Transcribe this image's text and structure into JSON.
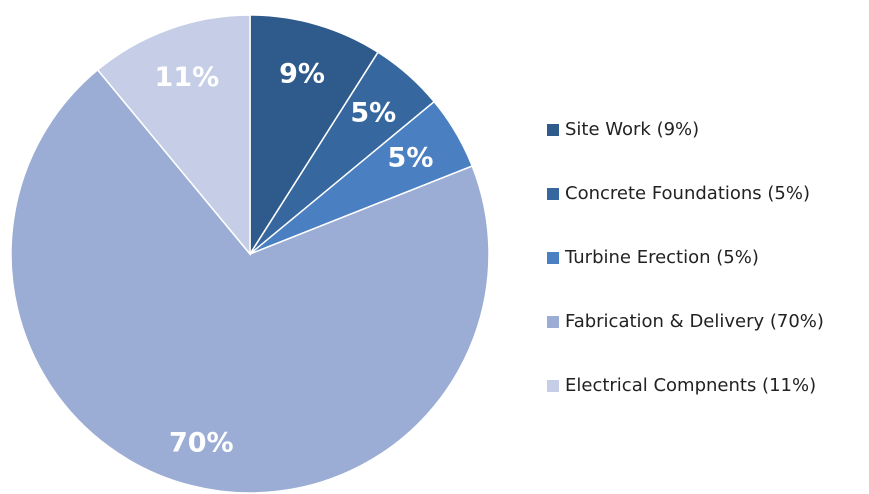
{
  "chart_data": {
    "type": "pie",
    "categories": [
      "Site Work (9%)",
      "Concrete Foundations (5%)",
      "Turbine Erection (5%)",
      "Fabrication & Delivery (70%)",
      "Electrical Compnents (11%)"
    ],
    "values": [
      9,
      5,
      5,
      70,
      11
    ],
    "value_labels": [
      "9%",
      "5%",
      "5%",
      "70%",
      "11%"
    ],
    "colors": [
      "#2e5a8c",
      "#36679f",
      "#4a7fc1",
      "#9badd4",
      "#c5cee6"
    ],
    "legend": "right"
  }
}
